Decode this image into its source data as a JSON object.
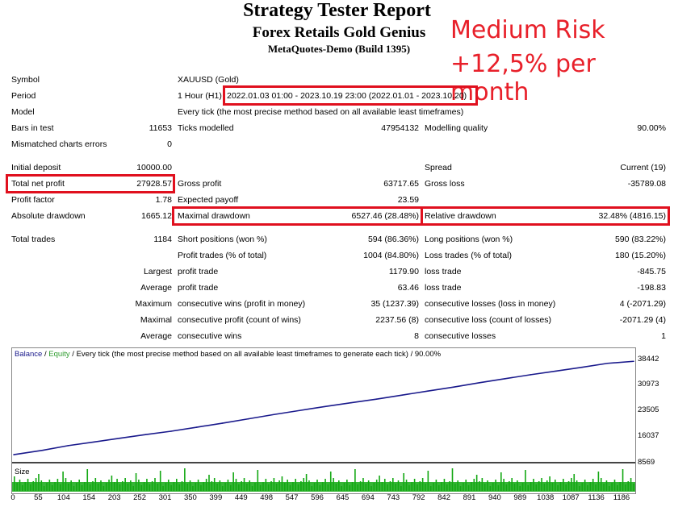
{
  "header": {
    "title": "Strategy Tester Report",
    "subtitle": "Forex Retails Gold Genius",
    "server": "MetaQuotes-Demo (Build 1395)"
  },
  "annotation": {
    "line1": "Medium Risk",
    "line2": "+12,5% per month"
  },
  "info": {
    "symbol_label": "Symbol",
    "symbol_value": "XAUUSD (Gold)",
    "period_label": "Period",
    "period_prefix": "1 Hour (H1)",
    "period_value": "2022.01.03 01:00 - 2023.10.19 23:00 (2022.01.01 - 2023.10.20)",
    "model_label": "Model",
    "model_value": "Every tick (the most precise method based on all available least timeframes)",
    "bars_label": "Bars in test",
    "bars_value": "11653",
    "ticks_label": "Ticks modelled",
    "ticks_value": "47954132",
    "quality_label": "Modelling quality",
    "quality_value": "90.00%",
    "mismatch_label": "Mismatched charts errors",
    "mismatch_value": "0"
  },
  "stats": {
    "deposit_label": "Initial deposit",
    "deposit_value": "10000.00",
    "spread_label": "Spread",
    "spread_value": "Current (19)",
    "netprofit_label": "Total net profit",
    "netprofit_value": "27928.57",
    "grossprofit_label": "Gross profit",
    "grossprofit_value": "63717.65",
    "grossloss_label": "Gross loss",
    "grossloss_value": "-35789.08",
    "pf_label": "Profit factor",
    "pf_value": "1.78",
    "payoff_label": "Expected payoff",
    "payoff_value": "23.59",
    "absdd_label": "Absolute drawdown",
    "absdd_value": "1665.12",
    "maxdd_label": "Maximal drawdown",
    "maxdd_value": "6527.46 (28.48%)",
    "reldd_label": "Relative drawdown",
    "reldd_value": "32.48% (4816.15)"
  },
  "trades": {
    "total_label": "Total trades",
    "total_value": "1184",
    "short_label": "Short positions (won %)",
    "short_value": "594 (86.36%)",
    "long_label": "Long positions (won %)",
    "long_value": "590 (83.22%)",
    "profit_label": "Profit trades (% of total)",
    "profit_value": "1004 (84.80%)",
    "loss_label": "Loss trades (% of total)",
    "loss_value": "180 (15.20%)",
    "largest": "Largest",
    "largest_profit_label": "profit trade",
    "largest_profit_value": "1179.90",
    "largest_loss_label": "loss trade",
    "largest_loss_value": "-845.75",
    "average": "Average",
    "avg_profit_label": "profit trade",
    "avg_profit_value": "63.46",
    "avg_loss_label": "loss trade",
    "avg_loss_value": "-198.83",
    "maximum": "Maximum",
    "max_wins_label": "consecutive wins (profit in money)",
    "max_wins_value": "35 (1237.39)",
    "max_losses_label": "consecutive losses (loss in money)",
    "max_losses_value": "4 (-2071.29)",
    "maximal": "Maximal",
    "maximal_profit_label": "consecutive profit (count of wins)",
    "maximal_profit_value": "2237.56 (8)",
    "maximal_loss_label": "consecutive loss (count of losses)",
    "maximal_loss_value": "-2071.29 (4)",
    "average2": "Average",
    "avg_wins_label": "consecutive wins",
    "avg_wins_value": "8",
    "avg_losses_label": "consecutive losses",
    "avg_losses_value": "1"
  },
  "chart_legend": {
    "balance": "Balance",
    "sep": " / ",
    "equity": "Equity",
    "rest": " / Every tick (the most precise method based on all available least timeframes to generate each tick) / 90.00%",
    "size": "Size"
  },
  "colors": {
    "balance": "#1a1a8c",
    "equity": "#2e9c2e",
    "highlight": "#e0101e",
    "annotation": "#e8202a"
  },
  "chart_data": {
    "type": "line",
    "yticks": [
      "38442",
      "30973",
      "23505",
      "16037",
      "8569"
    ],
    "xticks": [
      "0",
      "55",
      "104",
      "154",
      "203",
      "252",
      "301",
      "350",
      "399",
      "449",
      "498",
      "547",
      "596",
      "645",
      "694",
      "743",
      "792",
      "842",
      "891",
      "940",
      "989",
      "1038",
      "1087",
      "1136",
      "1186"
    ],
    "ylim": [
      8569,
      38442
    ],
    "xlim": [
      0,
      1186
    ],
    "series": [
      {
        "name": "Balance",
        "x": [
          0,
          55,
          104,
          154,
          203,
          252,
          301,
          350,
          399,
          449,
          498,
          547,
          596,
          645,
          694,
          743,
          792,
          842,
          891,
          940,
          989,
          1038,
          1087,
          1136,
          1186
        ],
        "values": [
          10000,
          11300,
          12700,
          13800,
          14900,
          16000,
          17000,
          18200,
          19400,
          20700,
          22000,
          23200,
          24400,
          25500,
          26600,
          27800,
          29000,
          30200,
          31500,
          32700,
          33900,
          35000,
          36100,
          37300,
          37900
        ]
      }
    ]
  }
}
